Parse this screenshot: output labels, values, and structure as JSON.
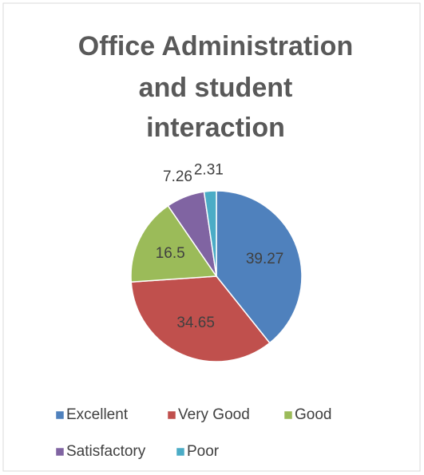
{
  "chart_data": {
    "type": "pie",
    "title": [
      "Office Administration",
      "and student",
      "interaction"
    ],
    "categories": [
      "Excellent",
      "Very Good",
      "Good",
      "Satisfactory",
      "Poor"
    ],
    "values": [
      39.27,
      34.65,
      16.5,
      7.26,
      2.31
    ],
    "colors": [
      "#4f81bd",
      "#c0504d",
      "#9bbb59",
      "#8064a2",
      "#4bacc6"
    ],
    "legend": "bottom"
  }
}
